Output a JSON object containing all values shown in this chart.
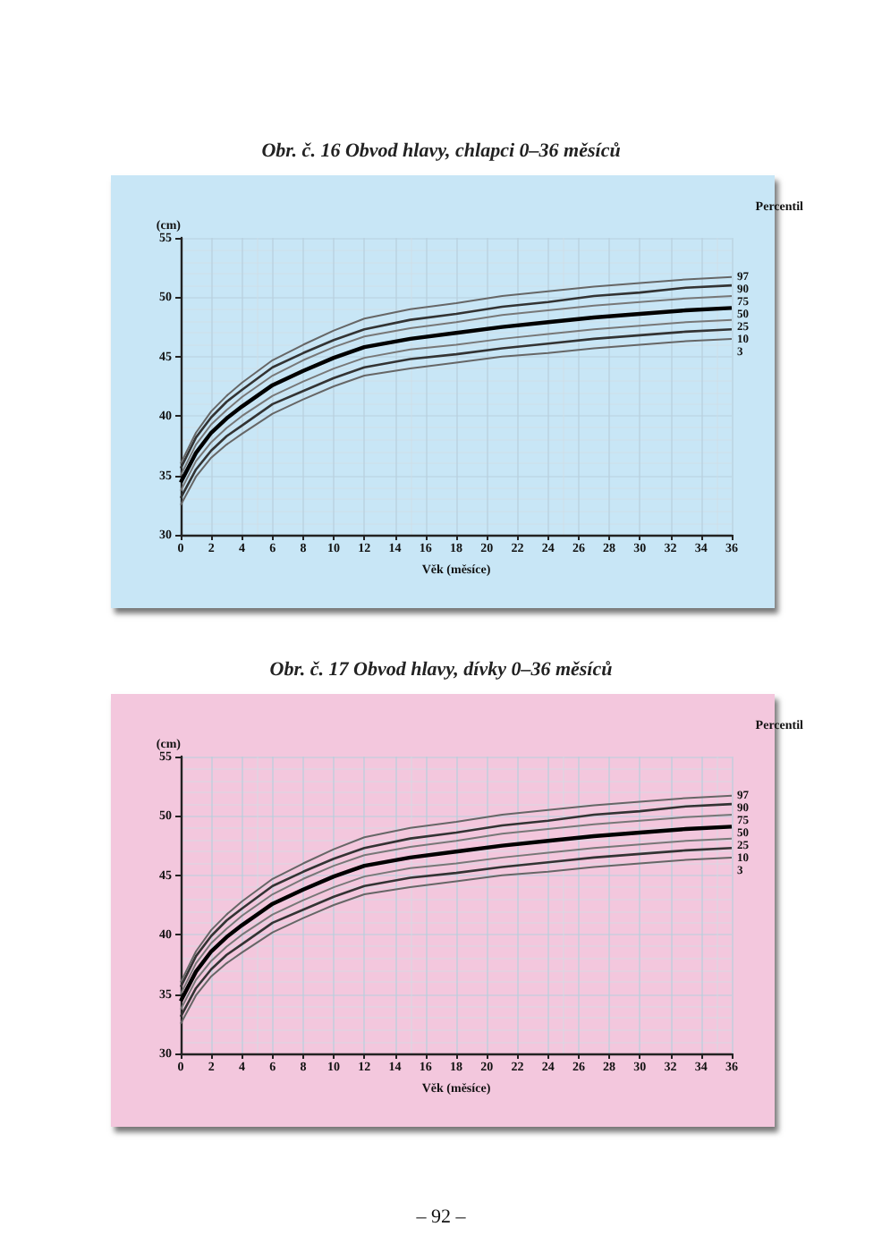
{
  "chart_data": [
    {
      "type": "line",
      "title": "Obr. č. 16 Obvod hlavy, chlapci 0–36 měsíců",
      "xlabel": "Věk (měsíce)",
      "ylabel": "(cm)",
      "legend_title": "Percentil",
      "x": [
        0,
        1,
        2,
        3,
        4,
        6,
        8,
        10,
        12,
        15,
        18,
        21,
        24,
        27,
        30,
        33,
        36
      ],
      "xlim": [
        0,
        36
      ],
      "xticks": [
        0,
        2,
        4,
        6,
        8,
        10,
        12,
        14,
        16,
        18,
        20,
        22,
        24,
        26,
        28,
        30,
        32,
        34,
        36
      ],
      "ylim": [
        30,
        55
      ],
      "yticks": [
        30,
        35,
        40,
        45,
        50,
        55
      ],
      "grid": true,
      "legend": false,
      "marker": "none",
      "line_style": "solid",
      "series": [
        {
          "name": "97",
          "color": "#666666",
          "values": [
            36.0,
            38.6,
            40.4,
            41.7,
            42.8,
            44.7,
            46.0,
            47.2,
            48.2,
            49.0,
            49.5,
            50.1,
            50.5,
            50.9,
            51.2,
            51.5,
            51.7
          ]
        },
        {
          "name": "90",
          "color": "#333333",
          "values": [
            35.6,
            38.2,
            39.9,
            41.2,
            42.2,
            44.1,
            45.3,
            46.4,
            47.3,
            48.1,
            48.6,
            49.2,
            49.6,
            50.1,
            50.4,
            50.8,
            51.0
          ]
        },
        {
          "name": "75",
          "color": "#777777",
          "values": [
            35.0,
            37.6,
            39.3,
            40.5,
            41.6,
            43.4,
            44.7,
            45.8,
            46.7,
            47.4,
            47.9,
            48.5,
            48.9,
            49.3,
            49.6,
            49.9,
            50.1
          ]
        },
        {
          "name": "50",
          "color": "#000000",
          "values": [
            34.4,
            36.9,
            38.6,
            39.8,
            40.8,
            42.6,
            43.8,
            44.9,
            45.8,
            46.5,
            47.0,
            47.5,
            47.9,
            48.3,
            48.6,
            48.9,
            49.1
          ]
        },
        {
          "name": "25",
          "color": "#777777",
          "values": [
            33.7,
            36.2,
            37.8,
            39.0,
            40.0,
            41.7,
            42.9,
            44.0,
            44.9,
            45.6,
            46.0,
            46.5,
            46.9,
            47.3,
            47.6,
            47.9,
            48.1
          ]
        },
        {
          "name": "10",
          "color": "#333333",
          "values": [
            33.1,
            35.5,
            37.1,
            38.3,
            39.2,
            41.0,
            42.1,
            43.2,
            44.1,
            44.8,
            45.2,
            45.7,
            46.1,
            46.5,
            46.8,
            47.1,
            47.3
          ]
        },
        {
          "name": "3",
          "color": "#666666",
          "values": [
            32.5,
            34.9,
            36.5,
            37.6,
            38.5,
            40.2,
            41.4,
            42.5,
            43.4,
            44.0,
            44.5,
            45.0,
            45.3,
            45.7,
            46.0,
            46.3,
            46.5
          ]
        }
      ]
    },
    {
      "type": "line",
      "title": "Obr. č. 17 Obvod hlavy, dívky 0–36 měsíců",
      "xlabel": "Věk (měsíce)",
      "ylabel": "(cm)",
      "legend_title": "Percentil",
      "annotations": [
        "– 92 –"
      ],
      "x": [
        0,
        1,
        2,
        3,
        4,
        6,
        8,
        10,
        12,
        15,
        18,
        21,
        24,
        27,
        30,
        33,
        36
      ],
      "xlim": [
        0,
        36
      ],
      "xticks": [
        0,
        2,
        4,
        6,
        8,
        10,
        12,
        14,
        16,
        18,
        20,
        22,
        24,
        26,
        28,
        30,
        32,
        34,
        36
      ],
      "ylim": [
        30,
        55
      ],
      "yticks": [
        30,
        35,
        40,
        45,
        50,
        55
      ],
      "grid": true,
      "legend": false,
      "marker": "none",
      "line_style": "solid",
      "series": [
        {
          "name": "97",
          "color": "#666666",
          "values": [
            36.0,
            38.6,
            40.4,
            41.7,
            42.8,
            44.7,
            46.0,
            47.2,
            48.2,
            49.0,
            49.5,
            50.1,
            50.5,
            50.9,
            51.2,
            51.5,
            51.7
          ]
        },
        {
          "name": "90",
          "color": "#333333",
          "values": [
            35.6,
            38.2,
            39.9,
            41.2,
            42.2,
            44.1,
            45.3,
            46.4,
            47.3,
            48.1,
            48.6,
            49.2,
            49.6,
            50.1,
            50.4,
            50.8,
            51.0
          ]
        },
        {
          "name": "75",
          "color": "#777777",
          "values": [
            35.0,
            37.6,
            39.3,
            40.5,
            41.6,
            43.4,
            44.7,
            45.8,
            46.7,
            47.4,
            47.9,
            48.5,
            48.9,
            49.3,
            49.6,
            49.9,
            50.1
          ]
        },
        {
          "name": "50",
          "color": "#000000",
          "values": [
            34.4,
            36.9,
            38.6,
            39.8,
            40.8,
            42.6,
            43.8,
            44.9,
            45.8,
            46.5,
            47.0,
            47.5,
            47.9,
            48.3,
            48.6,
            48.9,
            49.1
          ]
        },
        {
          "name": "25",
          "color": "#777777",
          "values": [
            33.7,
            36.2,
            37.8,
            39.0,
            40.0,
            41.7,
            42.9,
            44.0,
            44.9,
            45.6,
            46.0,
            46.5,
            46.9,
            47.3,
            47.6,
            47.9,
            48.1
          ]
        },
        {
          "name": "10",
          "color": "#333333",
          "values": [
            33.1,
            35.5,
            37.1,
            38.3,
            39.2,
            41.0,
            42.1,
            43.2,
            44.1,
            44.8,
            45.2,
            45.7,
            46.1,
            46.5,
            46.8,
            47.1,
            47.3
          ]
        },
        {
          "name": "3",
          "color": "#666666",
          "values": [
            32.5,
            34.9,
            36.5,
            37.6,
            38.5,
            40.2,
            41.4,
            42.5,
            43.4,
            44.0,
            44.5,
            45.0,
            45.3,
            45.7,
            46.0,
            46.3,
            46.5
          ]
        }
      ]
    }
  ]
}
